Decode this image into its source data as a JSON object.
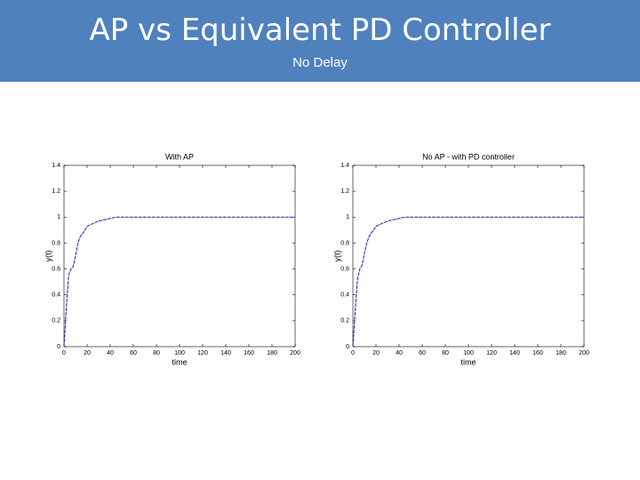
{
  "slide": {
    "title": "AP vs Equivalent PD Controller",
    "subtitle": "No Delay"
  },
  "chart_data": [
    {
      "type": "line",
      "title": "With AP",
      "x_label": "time",
      "y_label": "y(t)",
      "x": [
        0,
        2,
        4,
        6,
        8,
        10,
        12,
        14,
        16,
        18,
        20,
        25,
        30,
        35,
        40,
        45,
        50,
        200
      ],
      "series": [
        {
          "name": "y(t)",
          "color": "#1a1aa8",
          "values": [
            0,
            0.3,
            0.55,
            0.6,
            0.62,
            0.7,
            0.8,
            0.85,
            0.87,
            0.9,
            0.93,
            0.95,
            0.97,
            0.98,
            0.99,
            1.0,
            1.0,
            1.0
          ]
        }
      ],
      "xlim": [
        0,
        200
      ],
      "xticks": [
        0,
        20,
        40,
        60,
        80,
        100,
        120,
        140,
        160,
        180,
        200
      ],
      "ylim": [
        0,
        1.4
      ],
      "yticks": [
        0,
        0.2,
        0.4,
        0.6,
        0.8,
        1,
        1.2,
        1.4
      ]
    },
    {
      "type": "line",
      "title": "No AP - with PD controller",
      "x_label": "time",
      "y_label": "y(t)",
      "x": [
        0,
        2,
        4,
        6,
        8,
        10,
        12,
        14,
        16,
        18,
        20,
        25,
        30,
        35,
        40,
        45,
        50,
        200
      ],
      "series": [
        {
          "name": "y(t)",
          "color": "#1a1aa8",
          "values": [
            0,
            0.28,
            0.52,
            0.6,
            0.63,
            0.72,
            0.8,
            0.85,
            0.88,
            0.9,
            0.93,
            0.95,
            0.97,
            0.98,
            0.99,
            1.0,
            1.0,
            1.0
          ]
        }
      ],
      "xlim": [
        0,
        200
      ],
      "xticks": [
        0,
        20,
        40,
        60,
        80,
        100,
        120,
        140,
        160,
        180,
        200
      ],
      "ylim": [
        0,
        1.4
      ],
      "yticks": [
        0,
        0.2,
        0.4,
        0.6,
        0.8,
        1,
        1.2,
        1.4
      ]
    }
  ]
}
